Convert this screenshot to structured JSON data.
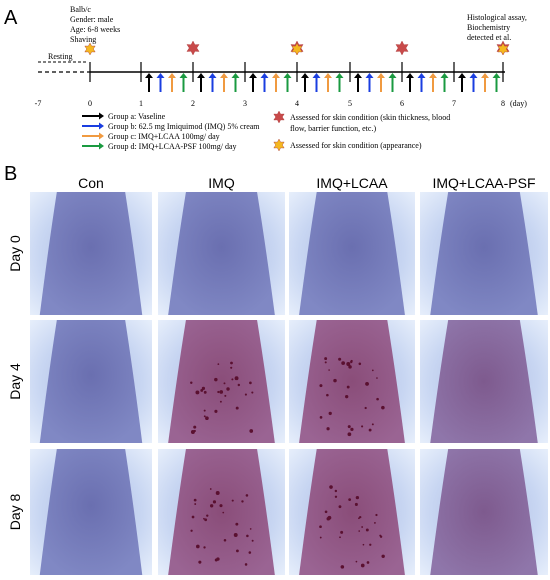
{
  "panel_a": {
    "label": "A",
    "mouse_info": [
      "Balb/c",
      "Gender: male",
      "Age: 6-8 weeks",
      "Shaving"
    ],
    "resting": "Resting",
    "final_info": [
      "Histological assay,",
      "Biochemistry",
      "detected et al."
    ],
    "days": [
      "-7",
      "0",
      "1",
      "2",
      "3",
      "4",
      "5",
      "6",
      "7",
      "8"
    ],
    "day_unit": "(day)",
    "legend_groups": [
      "Group a: Vaseline",
      "Group b: 62.5 mg Imiquimod (IMQ) 5% cream",
      "Group c: IMQ+LCAA 100mg/ day",
      "Group d: IMQ+LCAA-PSF 100mg/ day"
    ],
    "legend_assessments": [
      [
        "Assessed for skin condition (skin thickness, blood",
        "flow, barrier function, etc.)"
      ],
      [
        "Assessed for skin condition (appearance)"
      ]
    ]
  },
  "panel_b": {
    "label": "B",
    "columns": [
      "Con",
      "IMQ",
      "IMQ+LCAA",
      "IMQ+LCAA-PSF"
    ],
    "rows": [
      "Day 0",
      "Day 4",
      "Day 8"
    ]
  }
}
